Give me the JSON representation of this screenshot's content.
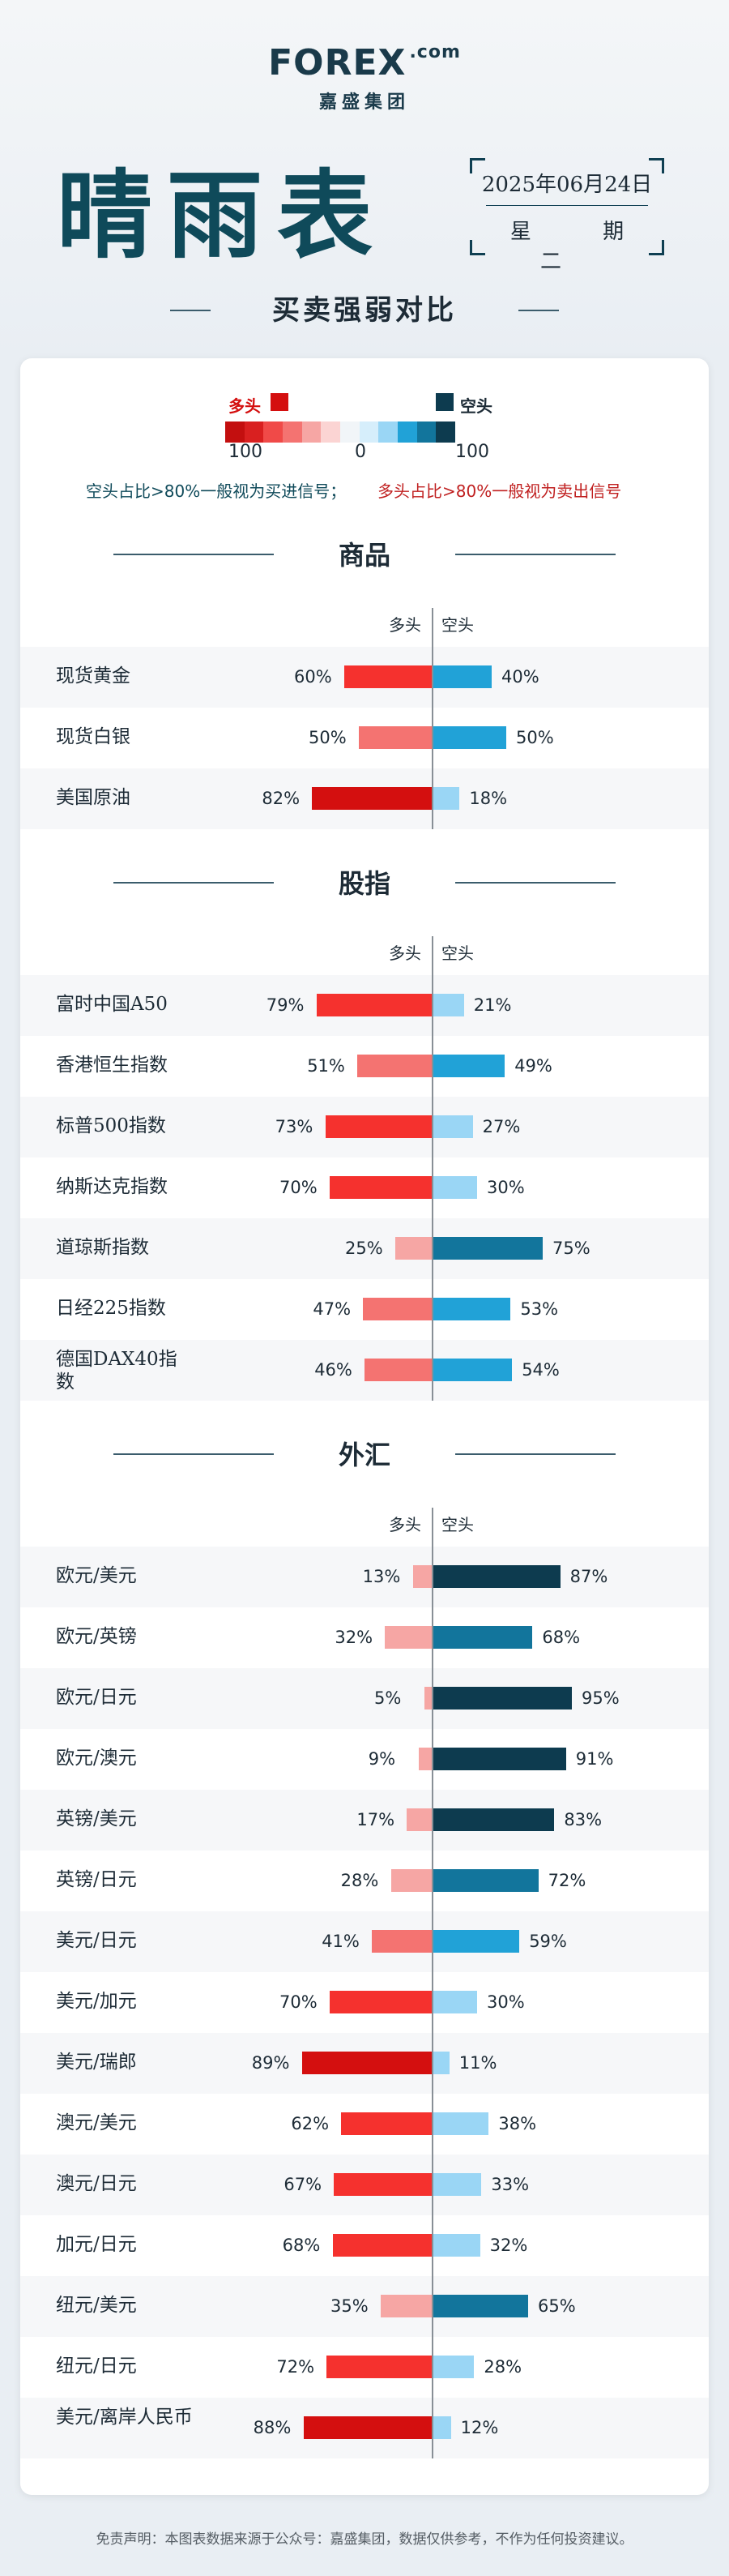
{
  "brand": {
    "logo": "FOREX",
    "logo_suffix": ".com",
    "sub": "嘉盛集团"
  },
  "title": "晴雨表",
  "date": "2025年06月24日",
  "weekday": "星 期 二",
  "subtitle": "买卖强弱对比",
  "legend": {
    "long_label": "多头",
    "short_label": "空头",
    "min": "100",
    "mid": "0",
    "max": "100"
  },
  "signal_buy": "空头占比>80%一般视为买进信号；",
  "signal_sell": "多头占比>80%一般视为卖出信号",
  "col_long": "多头",
  "col_short": "空头",
  "colors": {
    "title": "#0f4a5a",
    "long_strong": "#d40f0f",
    "long_mid": "#f5312e",
    "long_light": "#f47371",
    "long_pale": "#f6a6a4",
    "short_strong": "#0d3b4f",
    "short_mid": "#12759c",
    "short_light": "#21a2d7",
    "short_pale": "#9ad6f5"
  },
  "chart_data": [
    {
      "type": "bar",
      "title": "商品",
      "categories": [
        "现货黄金",
        "现货白银",
        "美国原油"
      ],
      "series": [
        {
          "name": "多头",
          "values": [
            60,
            50,
            82
          ]
        },
        {
          "name": "空头",
          "values": [
            40,
            50,
            18
          ]
        }
      ]
    },
    {
      "type": "bar",
      "title": "股指",
      "categories": [
        "富时中国A50",
        "香港恒生指数",
        "标普500指数",
        "纳斯达克指数",
        "道琼斯指数",
        "日经225指数",
        "德国DAX40指数"
      ],
      "series": [
        {
          "name": "多头",
          "values": [
            79,
            51,
            73,
            70,
            25,
            47,
            46
          ]
        },
        {
          "name": "空头",
          "values": [
            21,
            49,
            27,
            30,
            75,
            53,
            54
          ]
        }
      ]
    },
    {
      "type": "bar",
      "title": "外汇",
      "categories": [
        "欧元/美元",
        "欧元/英镑",
        "欧元/日元",
        "欧元/澳元",
        "英镑/美元",
        "英镑/日元",
        "美元/日元",
        "美元/加元",
        "美元/瑞郎",
        "澳元/美元",
        "澳元/日元",
        "加元/日元",
        "纽元/美元",
        "纽元/日元",
        "美元/离岸人民币"
      ],
      "series": [
        {
          "name": "多头",
          "values": [
            13,
            32,
            5,
            9,
            17,
            28,
            41,
            70,
            89,
            62,
            67,
            68,
            35,
            72,
            88
          ]
        },
        {
          "name": "空头",
          "values": [
            87,
            68,
            95,
            91,
            83,
            72,
            59,
            30,
            11,
            38,
            33,
            32,
            65,
            28,
            12
          ]
        }
      ]
    }
  ],
  "footer": "免责声明：本图表数据来源于公众号：嘉盛集团，数据仅供参考，不作为任何投资建议。"
}
